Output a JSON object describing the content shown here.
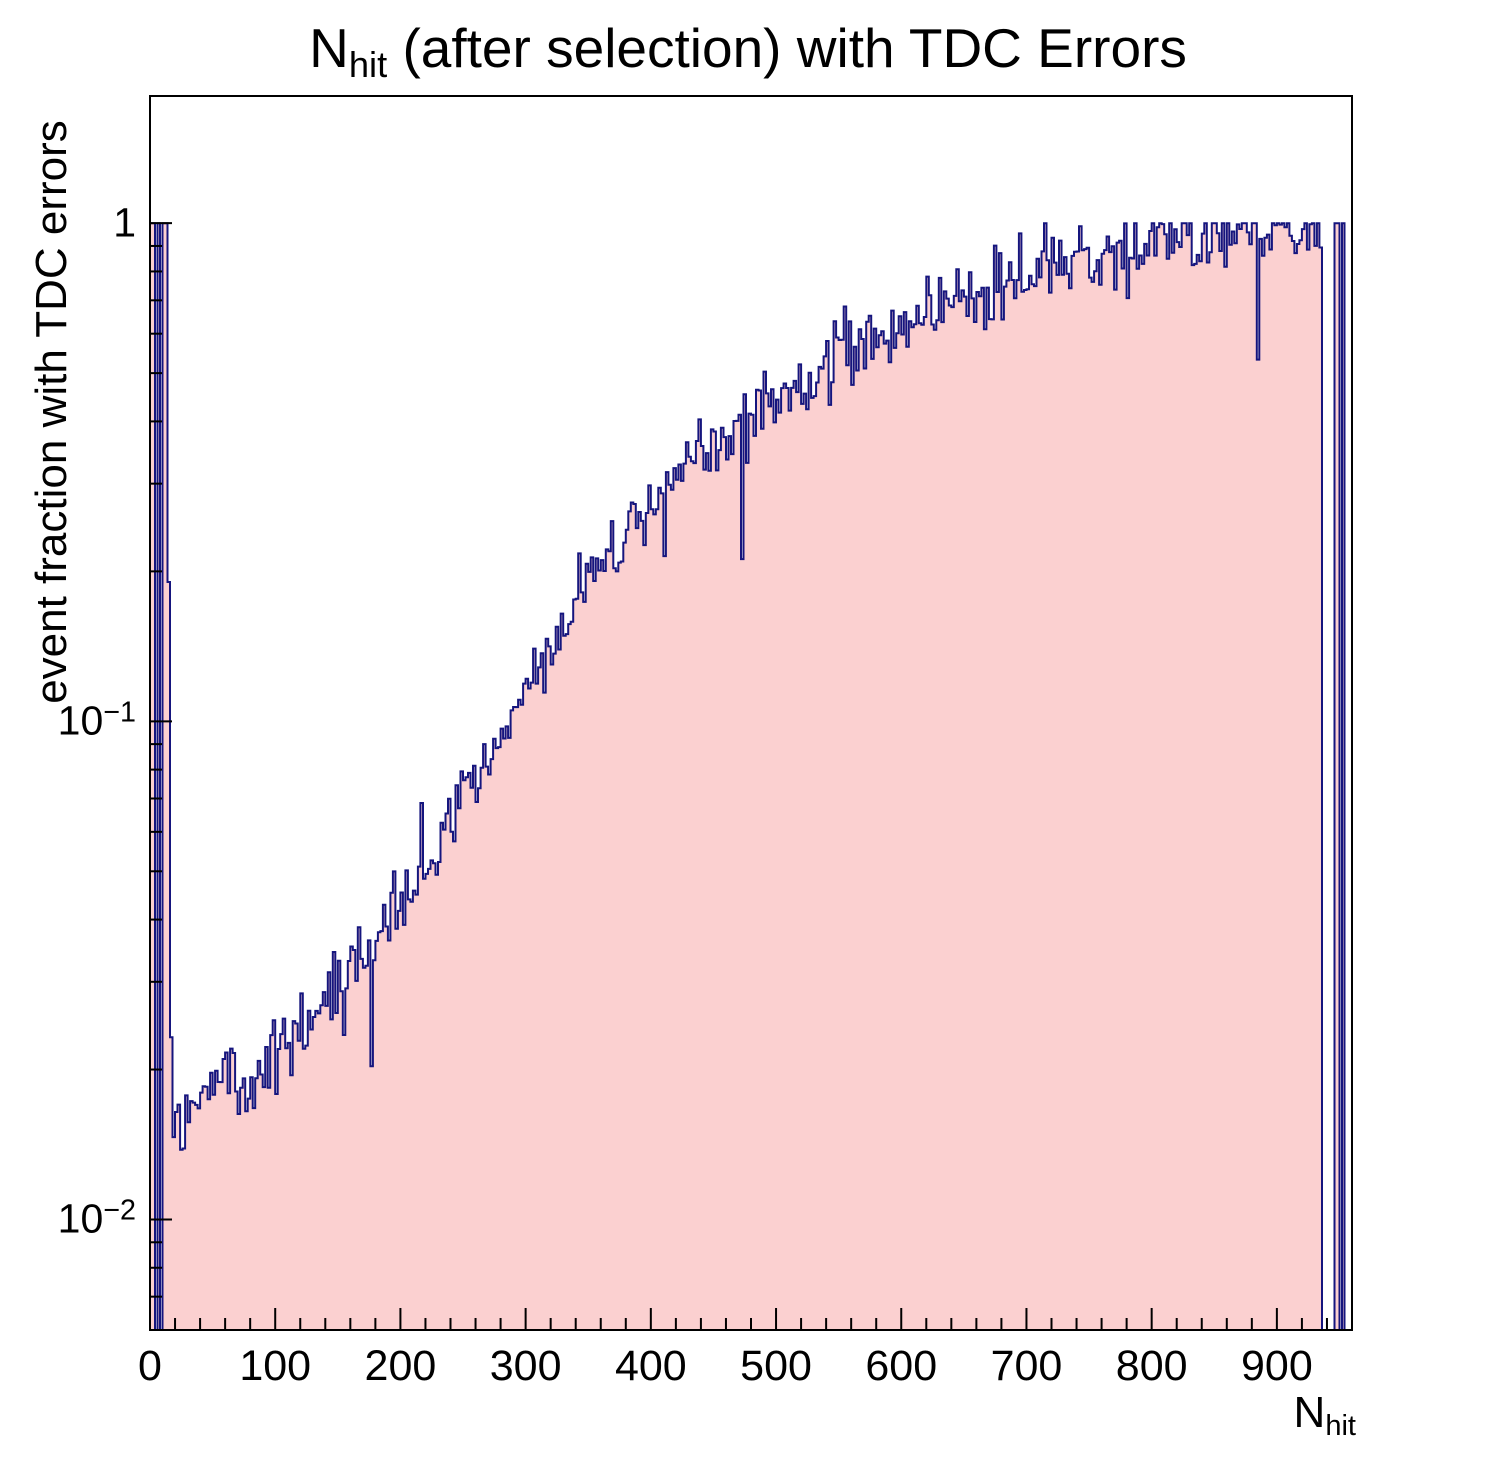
{
  "title": {
    "prefix": "N",
    "subscript": "hit",
    "suffix": " (after selection) with TDC Errors"
  },
  "y_axis": {
    "label": "event fraction with TDC errors",
    "scale": "log",
    "range": [
      0.006,
      1.8
    ],
    "major_ticks": [
      {
        "value": 1,
        "label": "1",
        "exp": ""
      },
      {
        "value": 0.1,
        "label": "10",
        "exp": "−1"
      },
      {
        "value": 0.01,
        "label": "10",
        "exp": "−2"
      }
    ]
  },
  "x_axis": {
    "label_prefix": "N",
    "label_subscript": "hit",
    "range": [
      0,
      960
    ],
    "major_tick_step": 100,
    "minor_tick_step": 20,
    "tick_labels": [
      0,
      100,
      200,
      300,
      400,
      500,
      600,
      700,
      800,
      900
    ]
  },
  "style": {
    "background": "#ffffff",
    "fill_color": "#fbd0d0",
    "line_color": "#15157e",
    "frame_color": "#000000"
  },
  "chart_data": {
    "type": "area",
    "subtype": "histogram-step",
    "x_bin_width": 2,
    "x_range": [
      0,
      960
    ],
    "y_scale": "log",
    "ylim": [
      0.006,
      1.8
    ],
    "control_points": [
      [
        0,
        1
      ],
      [
        13,
        1
      ],
      [
        14,
        0.6
      ],
      [
        16,
        0.045
      ],
      [
        18,
        0.0125
      ],
      [
        20,
        0.016
      ],
      [
        26,
        0.0165
      ],
      [
        34,
        0.017
      ],
      [
        44,
        0.018
      ],
      [
        56,
        0.0195
      ],
      [
        66,
        0.02
      ],
      [
        76,
        0.0195
      ],
      [
        86,
        0.0205
      ],
      [
        96,
        0.021
      ],
      [
        110,
        0.023
      ],
      [
        124,
        0.0245
      ],
      [
        138,
        0.027
      ],
      [
        152,
        0.03
      ],
      [
        166,
        0.0325
      ],
      [
        180,
        0.036
      ],
      [
        194,
        0.04
      ],
      [
        208,
        0.046
      ],
      [
        222,
        0.052
      ],
      [
        236,
        0.06
      ],
      [
        250,
        0.07
      ],
      [
        264,
        0.08
      ],
      [
        278,
        0.094
      ],
      [
        292,
        0.108
      ],
      [
        306,
        0.125
      ],
      [
        320,
        0.143
      ],
      [
        334,
        0.162
      ],
      [
        348,
        0.185
      ],
      [
        362,
        0.205
      ],
      [
        376,
        0.228
      ],
      [
        390,
        0.252
      ],
      [
        404,
        0.276
      ],
      [
        418,
        0.3
      ],
      [
        432,
        0.328
      ],
      [
        446,
        0.352
      ],
      [
        460,
        0.375
      ],
      [
        474,
        0.398
      ],
      [
        488,
        0.42
      ],
      [
        502,
        0.443
      ],
      [
        516,
        0.466
      ],
      [
        530,
        0.49
      ],
      [
        544,
        0.515
      ],
      [
        558,
        0.545
      ],
      [
        572,
        0.575
      ],
      [
        586,
        0.605
      ],
      [
        600,
        0.64
      ],
      [
        614,
        0.655
      ],
      [
        628,
        0.672
      ],
      [
        642,
        0.69
      ],
      [
        656,
        0.71
      ],
      [
        670,
        0.73
      ],
      [
        684,
        0.752
      ],
      [
        698,
        0.778
      ],
      [
        712,
        0.8
      ],
      [
        726,
        0.818
      ],
      [
        740,
        0.835
      ],
      [
        754,
        0.852
      ],
      [
        768,
        0.868
      ],
      [
        782,
        0.884
      ],
      [
        796,
        0.9
      ],
      [
        810,
        0.912
      ],
      [
        824,
        0.922
      ],
      [
        838,
        0.932
      ],
      [
        852,
        0.942
      ],
      [
        866,
        0.95
      ],
      [
        880,
        0.958
      ],
      [
        894,
        0.964
      ],
      [
        908,
        0.97
      ],
      [
        922,
        0.978
      ],
      [
        935,
        0.985
      ],
      [
        936,
        1.0
      ],
      [
        960,
        1.0
      ]
    ],
    "noise": {
      "seed": 20240521,
      "sigma_log10": 0.035,
      "spike_prob": 0.07,
      "spike_sigma_log10": 0.12
    },
    "left_full_region": {
      "x_max": 14,
      "value": 1,
      "zero_bin_edges": [
        4,
        8
      ]
    },
    "right_sparse_region": {
      "x_min": 936,
      "one_probability": 0.5
    }
  }
}
